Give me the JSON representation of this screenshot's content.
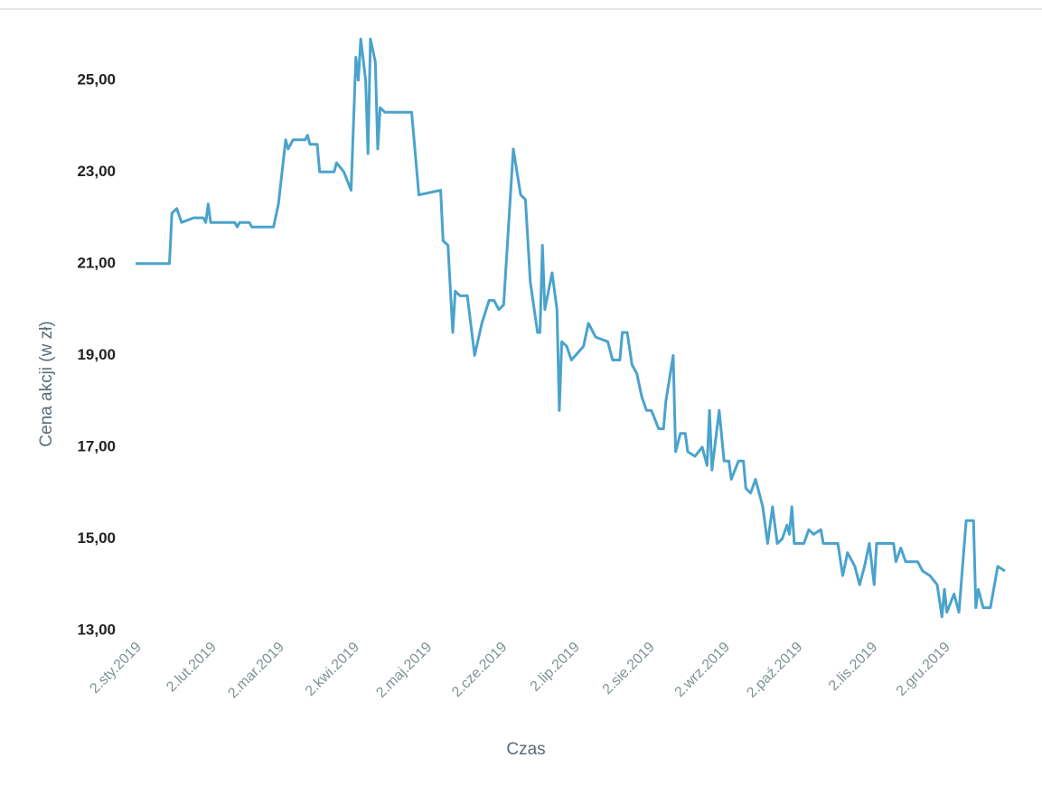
{
  "chart_data": {
    "type": "line",
    "x_label": "Czas",
    "y_label": "Cena akcji (w zł)",
    "x": [
      "2019-01-02",
      "2019-01-16",
      "2019-01-17",
      "2019-01-19",
      "2019-01-21",
      "2019-01-26",
      "2019-01-30",
      "2019-01-31",
      "2019-02-01",
      "2019-02-02",
      "2019-02-12",
      "2019-02-13",
      "2019-02-14",
      "2019-02-18",
      "2019-02-19",
      "2019-02-28",
      "2019-03-02",
      "2019-03-05",
      "2019-03-06",
      "2019-03-08",
      "2019-03-13",
      "2019-03-14",
      "2019-03-15",
      "2019-03-18",
      "2019-03-19",
      "2019-03-25",
      "2019-03-26",
      "2019-03-29",
      "2019-04-01",
      "2019-04-03",
      "2019-04-04",
      "2019-04-05",
      "2019-04-07",
      "2019-04-08",
      "2019-04-09",
      "2019-04-11",
      "2019-04-12",
      "2019-04-13",
      "2019-04-15",
      "2019-04-26",
      "2019-04-29",
      "2019-05-08",
      "2019-05-09",
      "2019-05-11",
      "2019-05-13",
      "2019-05-14",
      "2019-05-16",
      "2019-05-19",
      "2019-05-22",
      "2019-05-25",
      "2019-05-28",
      "2019-05-30",
      "2019-06-01",
      "2019-06-03",
      "2019-06-07",
      "2019-06-10",
      "2019-06-12",
      "2019-06-14",
      "2019-06-17",
      "2019-06-18",
      "2019-06-19",
      "2019-06-20",
      "2019-06-23",
      "2019-06-25",
      "2019-06-26",
      "2019-06-27",
      "2019-06-29",
      "2019-07-01",
      "2019-07-06",
      "2019-07-08",
      "2019-07-11",
      "2019-07-16",
      "2019-07-18",
      "2019-07-21",
      "2019-07-22",
      "2019-07-24",
      "2019-07-26",
      "2019-07-28",
      "2019-07-30",
      "2019-08-01",
      "2019-08-03",
      "2019-08-06",
      "2019-08-08",
      "2019-08-09",
      "2019-08-12",
      "2019-08-13",
      "2019-08-15",
      "2019-08-17",
      "2019-08-18",
      "2019-08-21",
      "2019-08-24",
      "2019-08-26",
      "2019-08-27",
      "2019-08-28",
      "2019-08-31",
      "2019-09-02",
      "2019-09-04",
      "2019-09-05",
      "2019-09-08",
      "2019-09-10",
      "2019-09-11",
      "2019-09-13",
      "2019-09-15",
      "2019-09-16",
      "2019-09-18",
      "2019-09-20",
      "2019-09-22",
      "2019-09-24",
      "2019-09-26",
      "2019-09-28",
      "2019-09-29",
      "2019-09-30",
      "2019-10-01",
      "2019-10-05",
      "2019-10-07",
      "2019-10-09",
      "2019-10-12",
      "2019-10-13",
      "2019-10-19",
      "2019-10-21",
      "2019-10-23",
      "2019-10-26",
      "2019-10-28",
      "2019-10-30",
      "2019-11-01",
      "2019-11-03",
      "2019-11-04",
      "2019-11-11",
      "2019-11-12",
      "2019-11-14",
      "2019-11-16",
      "2019-11-21",
      "2019-11-23",
      "2019-11-26",
      "2019-11-29",
      "2019-12-01",
      "2019-12-02",
      "2019-12-03",
      "2019-12-06",
      "2019-12-08",
      "2019-12-11",
      "2019-12-14",
      "2019-12-15",
      "2019-12-16",
      "2019-12-18",
      "2019-12-21",
      "2019-12-24",
      "2019-12-27"
    ],
    "series": [
      {
        "name": "Cena akcji",
        "color": "#4aa3cc",
        "values": [
          21.0,
          21.0,
          22.1,
          22.2,
          21.9,
          22.0,
          22.0,
          21.9,
          22.3,
          21.9,
          21.9,
          21.8,
          21.9,
          21.9,
          21.8,
          21.8,
          22.3,
          23.7,
          23.5,
          23.7,
          23.7,
          23.8,
          23.6,
          23.6,
          23.0,
          23.0,
          23.2,
          23.0,
          22.6,
          25.5,
          25.0,
          25.9,
          25.0,
          23.4,
          25.9,
          25.4,
          23.5,
          24.4,
          24.3,
          24.3,
          22.5,
          22.6,
          21.5,
          21.4,
          19.5,
          20.4,
          20.3,
          20.3,
          19.0,
          19.7,
          20.2,
          20.2,
          20.0,
          20.1,
          23.5,
          22.5,
          22.4,
          20.6,
          19.5,
          19.5,
          21.4,
          20.0,
          20.8,
          20.0,
          17.8,
          19.3,
          19.2,
          18.9,
          19.2,
          19.7,
          19.4,
          19.3,
          18.9,
          18.9,
          19.5,
          19.5,
          18.8,
          18.6,
          18.1,
          17.8,
          17.8,
          17.4,
          17.4,
          18.0,
          19.0,
          16.9,
          17.3,
          17.3,
          16.9,
          16.8,
          17.0,
          16.6,
          17.8,
          16.5,
          17.8,
          16.7,
          16.7,
          16.3,
          16.7,
          16.7,
          16.1,
          16.0,
          16.3,
          16.1,
          15.7,
          14.9,
          15.7,
          14.9,
          15.0,
          15.3,
          15.1,
          15.7,
          14.9,
          14.9,
          15.2,
          15.1,
          15.2,
          14.9,
          14.9,
          14.2,
          14.7,
          14.4,
          14.0,
          14.4,
          14.9,
          14.0,
          14.9,
          14.9,
          14.5,
          14.8,
          14.5,
          14.5,
          14.3,
          14.2,
          14.0,
          13.3,
          13.9,
          13.4,
          13.8,
          13.4,
          15.4,
          15.4,
          13.5,
          13.9,
          13.5,
          13.5,
          14.4,
          14.3
        ]
      }
    ],
    "xlim": [
      "2019-01-02",
      "2019-12-27"
    ],
    "ylim": [
      13,
      26
    ],
    "xticks": [
      {
        "value": "2019-01-02",
        "label": "2.sty.2019"
      },
      {
        "value": "2019-02-02",
        "label": "2.lut.2019"
      },
      {
        "value": "2019-03-02",
        "label": "2.mar.2019"
      },
      {
        "value": "2019-04-02",
        "label": "2.kwi.2019"
      },
      {
        "value": "2019-05-02",
        "label": "2.maj.2019"
      },
      {
        "value": "2019-06-02",
        "label": "2.cze.2019"
      },
      {
        "value": "2019-07-02",
        "label": "2.lip.2019"
      },
      {
        "value": "2019-08-02",
        "label": "2.sie.2019"
      },
      {
        "value": "2019-09-02",
        "label": "2.wrz.2019"
      },
      {
        "value": "2019-10-02",
        "label": "2.paź.2019"
      },
      {
        "value": "2019-11-02",
        "label": "2.lis.2019"
      },
      {
        "value": "2019-12-02",
        "label": "2.gru.2019"
      }
    ],
    "yticks": [
      {
        "value": 13,
        "label": "13,00"
      },
      {
        "value": 15,
        "label": "15,00"
      },
      {
        "value": 17,
        "label": "17,00"
      },
      {
        "value": 19,
        "label": "19,00"
      },
      {
        "value": 21,
        "label": "21,00"
      },
      {
        "value": 23,
        "label": "23,00"
      },
      {
        "value": 25,
        "label": "25,00"
      }
    ],
    "grid": false
  }
}
